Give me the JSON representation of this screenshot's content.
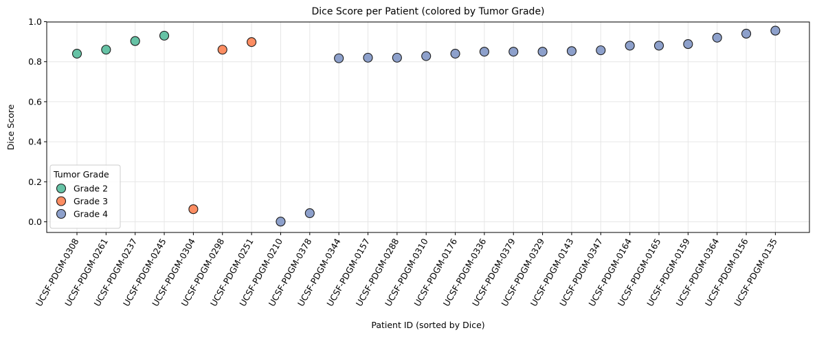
{
  "chart_data": {
    "type": "scatter",
    "title": "Dice Score per Patient (colored by Tumor Grade)",
    "xlabel": "Patient ID (sorted by Dice)",
    "ylabel": "Dice Score",
    "ylim": [
      -0.045,
      1.0
    ],
    "yticks": [
      "0.0",
      "0.2",
      "0.4",
      "0.6",
      "0.8",
      "1.0"
    ],
    "grid": true,
    "legend_title": "Tumor Grade",
    "legend_position": "lower-left",
    "categories": [
      "UCSF-PDGM-0308",
      "UCSF-PDGM-0261",
      "UCSF-PDGM-0237",
      "UCSF-PDGM-0245",
      "UCSF-PDGM-0304",
      "UCSF-PDGM-0298",
      "UCSF-PDGM-0251",
      "UCSF-PDGM-0210",
      "UCSF-PDGM-0378",
      "UCSF-PDGM-0344",
      "UCSF-PDGM-0157",
      "UCSF-PDGM-0288",
      "UCSF-PDGM-0310",
      "UCSF-PDGM-0176",
      "UCSF-PDGM-0336",
      "UCSF-PDGM-0379",
      "UCSF-PDGM-0329",
      "UCSF-PDGM-0143",
      "UCSF-PDGM-0347",
      "UCSF-PDGM-0164",
      "UCSF-PDGM-0165",
      "UCSF-PDGM-0159",
      "UCSF-PDGM-0364",
      "UCSF-PDGM-0156",
      "UCSF-PDGM-0135"
    ],
    "series": [
      {
        "name": "Grade 2",
        "color": "#66c2a5",
        "points": [
          {
            "x": "UCSF-PDGM-0308",
            "y": 0.84
          },
          {
            "x": "UCSF-PDGM-0261",
            "y": 0.86
          },
          {
            "x": "UCSF-PDGM-0237",
            "y": 0.903
          },
          {
            "x": "UCSF-PDGM-0245",
            "y": 0.93
          }
        ]
      },
      {
        "name": "Grade 3",
        "color": "#fc8d62",
        "points": [
          {
            "x": "UCSF-PDGM-0304",
            "y": 0.063
          },
          {
            "x": "UCSF-PDGM-0298",
            "y": 0.86
          },
          {
            "x": "UCSF-PDGM-0251",
            "y": 0.898
          }
        ]
      },
      {
        "name": "Grade 4",
        "color": "#8da0cb",
        "points": [
          {
            "x": "UCSF-PDGM-0210",
            "y": 0.001
          },
          {
            "x": "UCSF-PDGM-0378",
            "y": 0.043
          },
          {
            "x": "UCSF-PDGM-0344",
            "y": 0.817
          },
          {
            "x": "UCSF-PDGM-0157",
            "y": 0.82
          },
          {
            "x": "UCSF-PDGM-0288",
            "y": 0.82
          },
          {
            "x": "UCSF-PDGM-0310",
            "y": 0.828
          },
          {
            "x": "UCSF-PDGM-0176",
            "y": 0.84
          },
          {
            "x": "UCSF-PDGM-0336",
            "y": 0.85
          },
          {
            "x": "UCSF-PDGM-0379",
            "y": 0.85
          },
          {
            "x": "UCSF-PDGM-0329",
            "y": 0.85
          },
          {
            "x": "UCSF-PDGM-0143",
            "y": 0.853
          },
          {
            "x": "UCSF-PDGM-0347",
            "y": 0.857
          },
          {
            "x": "UCSF-PDGM-0164",
            "y": 0.88
          },
          {
            "x": "UCSF-PDGM-0165",
            "y": 0.88
          },
          {
            "x": "UCSF-PDGM-0159",
            "y": 0.888
          },
          {
            "x": "UCSF-PDGM-0364",
            "y": 0.92
          },
          {
            "x": "UCSF-PDGM-0156",
            "y": 0.94
          },
          {
            "x": "UCSF-PDGM-0135",
            "y": 0.955
          }
        ]
      }
    ]
  }
}
